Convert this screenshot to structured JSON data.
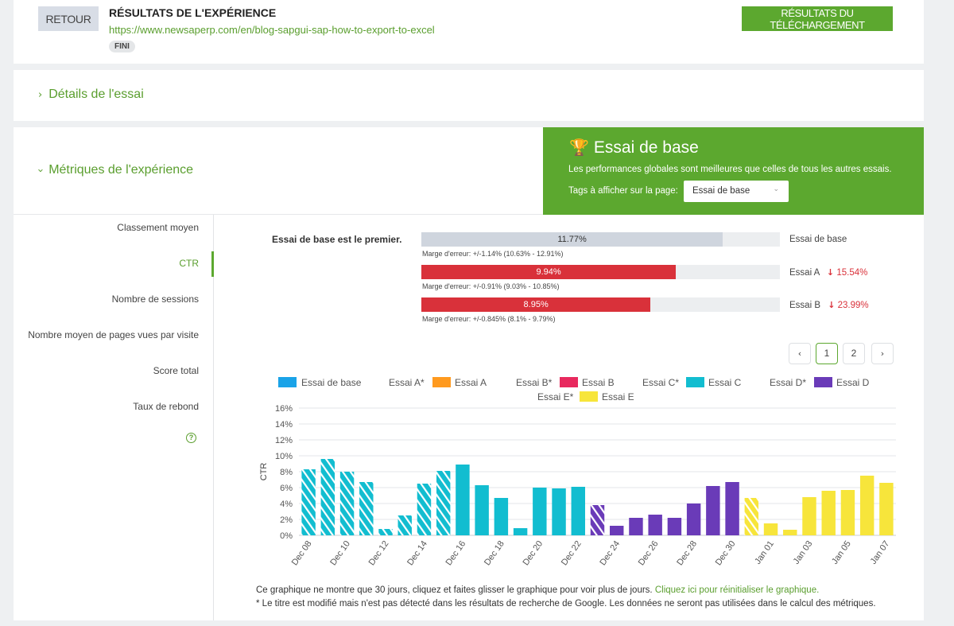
{
  "header": {
    "back_label": "RETOUR",
    "title": "RÉSULTATS DE L'EXPÉRIENCE",
    "url": "https://www.newsaperp.com/en/blog-sapgui-sap-how-to-export-to-excel",
    "status": "FINI",
    "download_label": "RÉSULTATS DU TÉLÉCHARGEMENT"
  },
  "details": {
    "title": "Détails de l'essai"
  },
  "metrics_section": {
    "title": "Métriques de l'expérience"
  },
  "winner_panel": {
    "title": "Essai de base",
    "description": "Les performances globales sont meilleures que celles de tous les autres essais.",
    "tags_label": "Tags à afficher sur la page:",
    "tags_value": "Essai de base"
  },
  "metrics_nav": [
    {
      "label": "Classement moyen",
      "active": false
    },
    {
      "label": "CTR",
      "active": true
    },
    {
      "label": "Nombre de sessions",
      "active": false
    },
    {
      "label": "Nombre moyen de pages vues par visite",
      "active": false
    },
    {
      "label": "Score total",
      "active": false
    },
    {
      "label": "Taux de rebond",
      "active": false
    }
  ],
  "results": {
    "leader_text": "Essai de base est le premier.",
    "rows": [
      {
        "name": "Essai de base",
        "value": "11.77%",
        "fraction": 0.1177,
        "margin": "Marge d'erreur: +/-1.14% (10.63% - 12.91%)",
        "delta": "",
        "color": "#cfd5de"
      },
      {
        "name": "Essai A",
        "value": "9.94%",
        "fraction": 0.0994,
        "margin": "Marge d'erreur: +/-0.91% (9.03% - 10.85%)",
        "delta": "15.54%",
        "color": "#d9313a"
      },
      {
        "name": "Essai B",
        "value": "8.95%",
        "fraction": 0.0895,
        "margin": "Marge d'erreur: +/-0.845% (8.1% - 9.79%)",
        "delta": "23.99%",
        "color": "#d9313a"
      }
    ]
  },
  "pager": {
    "pages": [
      "1",
      "2"
    ],
    "current": "1"
  },
  "legend": [
    {
      "label": "Essai de base",
      "color": "#1aa3e8",
      "hatched": false
    },
    {
      "label": "Essai A*",
      "color": "",
      "hatched": true
    },
    {
      "label": "Essai A",
      "color": "#ff9a1f",
      "hatched": false
    },
    {
      "label": "Essai B*",
      "color": "",
      "hatched": true
    },
    {
      "label": "Essai B",
      "color": "#e8295e",
      "hatched": false
    },
    {
      "label": "Essai C*",
      "color": "",
      "hatched": true
    },
    {
      "label": "Essai C",
      "color": "#12bdd0",
      "hatched": false
    },
    {
      "label": "Essai D*",
      "color": "",
      "hatched": true
    },
    {
      "label": "Essai D",
      "color": "#6a3bb8",
      "hatched": false
    },
    {
      "label": "Essai E*",
      "color": "",
      "hatched": true
    },
    {
      "label": "Essai E",
      "color": "#f7e53b",
      "hatched": false
    }
  ],
  "chart_data": {
    "type": "bar",
    "ylabel": "CTR",
    "ylim": [
      0,
      16
    ],
    "yticks": [
      "0%",
      "2%",
      "4%",
      "6%",
      "8%",
      "10%",
      "12%",
      "14%",
      "16%"
    ],
    "x_tick_labels": [
      "Dec 08",
      "Dec 10",
      "Dec 12",
      "Dec 14",
      "Dec 16",
      "Dec 18",
      "Dec 20",
      "Dec 22",
      "Dec 24",
      "Dec 26",
      "Dec 28",
      "Dec 30",
      "Jan 01",
      "Jan 03",
      "Jan 05",
      "Jan 07"
    ],
    "grid": true,
    "colors": {
      "C": "#12bdd0",
      "D": "#6a3bb8",
      "E": "#f7e53b"
    },
    "bars": [
      {
        "date": "Dec 08",
        "value": 8.3,
        "series": "C",
        "hatched": true
      },
      {
        "date": "Dec 09",
        "value": 9.6,
        "series": "C",
        "hatched": true
      },
      {
        "date": "Dec 10",
        "value": 8.0,
        "series": "C",
        "hatched": true
      },
      {
        "date": "Dec 11",
        "value": 6.7,
        "series": "C",
        "hatched": true
      },
      {
        "date": "Dec 12",
        "value": 0.8,
        "series": "C",
        "hatched": true
      },
      {
        "date": "Dec 13",
        "value": 2.5,
        "series": "C",
        "hatched": true
      },
      {
        "date": "Dec 14",
        "value": 6.5,
        "series": "C",
        "hatched": true
      },
      {
        "date": "Dec 15",
        "value": 8.1,
        "series": "C",
        "hatched": true
      },
      {
        "date": "Dec 16",
        "value": 8.9,
        "series": "C",
        "hatched": false
      },
      {
        "date": "Dec 17",
        "value": 6.3,
        "series": "C",
        "hatched": false
      },
      {
        "date": "Dec 18",
        "value": 4.7,
        "series": "C",
        "hatched": false
      },
      {
        "date": "Dec 19",
        "value": 0.9,
        "series": "C",
        "hatched": false
      },
      {
        "date": "Dec 20",
        "value": 6.0,
        "series": "C",
        "hatched": false
      },
      {
        "date": "Dec 21",
        "value": 5.9,
        "series": "C",
        "hatched": false
      },
      {
        "date": "Dec 22",
        "value": 6.1,
        "series": "C",
        "hatched": false
      },
      {
        "date": "Dec 23",
        "value": 3.8,
        "series": "D",
        "hatched": true
      },
      {
        "date": "Dec 24",
        "value": 1.2,
        "series": "D",
        "hatched": false
      },
      {
        "date": "Dec 25",
        "value": 2.2,
        "series": "D",
        "hatched": false
      },
      {
        "date": "Dec 26",
        "value": 2.6,
        "series": "D",
        "hatched": false
      },
      {
        "date": "Dec 27",
        "value": 2.2,
        "series": "D",
        "hatched": false
      },
      {
        "date": "Dec 28",
        "value": 4.0,
        "series": "D",
        "hatched": false
      },
      {
        "date": "Dec 29",
        "value": 6.2,
        "series": "D",
        "hatched": false
      },
      {
        "date": "Dec 30",
        "value": 6.7,
        "series": "D",
        "hatched": false
      },
      {
        "date": "Dec 31",
        "value": 4.7,
        "series": "E",
        "hatched": true
      },
      {
        "date": "Jan 01",
        "value": 1.5,
        "series": "E",
        "hatched": false
      },
      {
        "date": "Jan 02",
        "value": 0.7,
        "series": "E",
        "hatched": false
      },
      {
        "date": "Jan 03",
        "value": 4.8,
        "series": "E",
        "hatched": false
      },
      {
        "date": "Jan 04",
        "value": 5.6,
        "series": "E",
        "hatched": false
      },
      {
        "date": "Jan 05",
        "value": 5.7,
        "series": "E",
        "hatched": false
      },
      {
        "date": "Jan 06",
        "value": 7.5,
        "series": "E",
        "hatched": false
      },
      {
        "date": "Jan 07",
        "value": 6.6,
        "series": "E",
        "hatched": false
      }
    ]
  },
  "footer": {
    "note1": "Ce graphique ne montre que 30 jours, cliquez et faites glisser le graphique pour voir plus de jours.",
    "reset_link": "Cliquez ici pour réinitialiser le graphique.",
    "note2": "* Le titre est modifié mais n'est pas détecté dans les résultats de recherche de Google. Les données ne seront pas utilisées dans le calcul des métriques."
  },
  "icons": {
    "trophy": "trophy-icon",
    "help": "help-circle-icon",
    "chevron": "chevron-right-icon"
  }
}
